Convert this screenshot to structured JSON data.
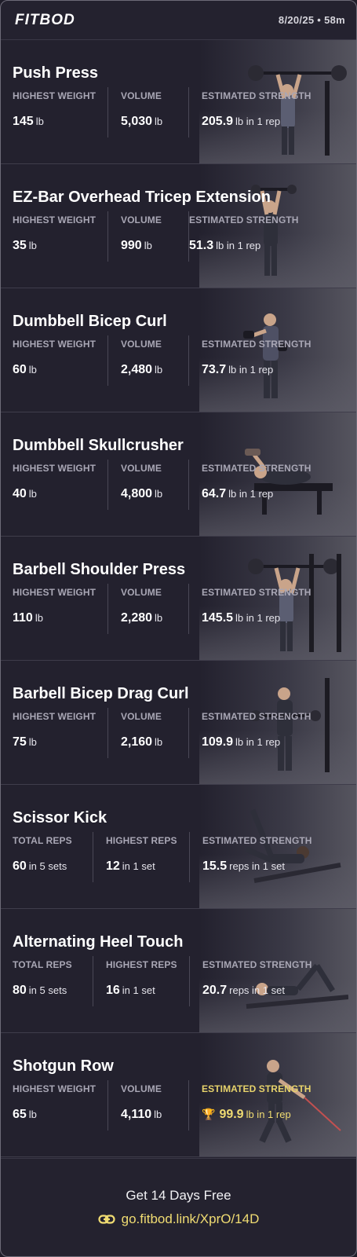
{
  "header": {
    "logo": "FITBOD",
    "meta": "8/20/25 • 58m"
  },
  "exercises": [
    {
      "title": "Push Press",
      "stats": [
        {
          "label": "HIGHEST WEIGHT",
          "value": "145",
          "unit": "lb"
        },
        {
          "label": "VOLUME",
          "value": "5,030",
          "unit": "lb"
        },
        {
          "label": "ESTIMATED STRENGTH",
          "value": "205.9",
          "unit": "lb in 1 rep"
        }
      ]
    },
    {
      "title": "EZ-Bar Overhead Tricep Extension",
      "stats": [
        {
          "label": "HIGHEST WEIGHT",
          "value": "35",
          "unit": "lb"
        },
        {
          "label": "VOLUME",
          "value": "990",
          "unit": "lb"
        },
        {
          "label": "ESTIMATED STRENGTH",
          "value": "51.3",
          "unit": "lb in 1 rep"
        }
      ]
    },
    {
      "title": "Dumbbell Bicep Curl",
      "stats": [
        {
          "label": "HIGHEST WEIGHT",
          "value": "60",
          "unit": "lb"
        },
        {
          "label": "VOLUME",
          "value": "2,480",
          "unit": "lb"
        },
        {
          "label": "ESTIMATED STRENGTH",
          "value": "73.7",
          "unit": "lb in 1 rep"
        }
      ]
    },
    {
      "title": "Dumbbell Skullcrusher",
      "stats": [
        {
          "label": "HIGHEST WEIGHT",
          "value": "40",
          "unit": "lb"
        },
        {
          "label": "VOLUME",
          "value": "4,800",
          "unit": "lb"
        },
        {
          "label": "ESTIMATED STRENGTH",
          "value": "64.7",
          "unit": "lb in 1 rep"
        }
      ]
    },
    {
      "title": "Barbell Shoulder Press",
      "stats": [
        {
          "label": "HIGHEST WEIGHT",
          "value": "110",
          "unit": "lb"
        },
        {
          "label": "VOLUME",
          "value": "2,280",
          "unit": "lb"
        },
        {
          "label": "ESTIMATED STRENGTH",
          "value": "145.5",
          "unit": "lb in 1 rep"
        }
      ]
    },
    {
      "title": "Barbell Bicep Drag Curl",
      "stats": [
        {
          "label": "HIGHEST WEIGHT",
          "value": "75",
          "unit": "lb"
        },
        {
          "label": "VOLUME",
          "value": "2,160",
          "unit": "lb"
        },
        {
          "label": "ESTIMATED STRENGTH",
          "value": "109.9",
          "unit": "lb in 1 rep"
        }
      ]
    },
    {
      "title": "Scissor Kick",
      "stats": [
        {
          "label": "TOTAL REPS",
          "value": "60",
          "unit": "in 5 sets"
        },
        {
          "label": "HIGHEST REPS",
          "value": "12",
          "unit": "in 1 set"
        },
        {
          "label": "ESTIMATED STRENGTH",
          "value": "15.5",
          "unit": "reps in 1 set"
        }
      ]
    },
    {
      "title": "Alternating Heel Touch",
      "stats": [
        {
          "label": "TOTAL REPS",
          "value": "80",
          "unit": "in 5 sets"
        },
        {
          "label": "HIGHEST REPS",
          "value": "16",
          "unit": "in 1 set"
        },
        {
          "label": "ESTIMATED STRENGTH",
          "value": "20.7",
          "unit": "reps in 1 set"
        }
      ]
    },
    {
      "title": "Shotgun Row",
      "stats": [
        {
          "label": "HIGHEST WEIGHT",
          "value": "65",
          "unit": "lb"
        },
        {
          "label": "VOLUME",
          "value": "4,110",
          "unit": "lb"
        },
        {
          "label": "ESTIMATED STRENGTH",
          "value": "99.9",
          "unit": "lb in 1 rep",
          "highlight": true,
          "icon": "trophy-icon"
        }
      ]
    }
  ],
  "footer": {
    "cta": "Get 14 Days Free",
    "link": "go.fitbod.link/XprO/14D",
    "link_icon": "link-icon"
  },
  "colors": {
    "background": "#24222f",
    "accent_gold": "#f0dc72",
    "label_gray": "#a9a7b5"
  }
}
